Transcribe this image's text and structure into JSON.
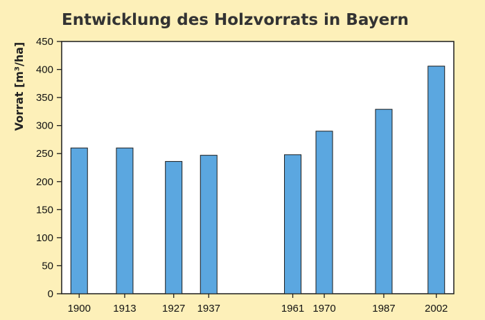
{
  "chart_data": {
    "type": "bar",
    "title": "Entwicklung des Holzvorrats in Bayern",
    "xlabel": "",
    "ylabel": "Vorrat [m³/ha]",
    "categories": [
      "1900",
      "1913",
      "1927",
      "1937",
      "1961",
      "1970",
      "1987",
      "2002"
    ],
    "x": [
      1900,
      1913,
      1927,
      1937,
      1961,
      1970,
      1987,
      2002
    ],
    "values": [
      260,
      260,
      236,
      247,
      248,
      290,
      329,
      406
    ],
    "ylim": [
      0,
      450
    ],
    "yticks": [
      "0",
      "50",
      "100",
      "150",
      "200",
      "250",
      "300",
      "350",
      "400",
      "450"
    ],
    "grid": false,
    "legend": "none",
    "colors": {
      "background": "#fdf0b9",
      "plot_area": "#ffffff",
      "bar_fill": "#5ba7e0",
      "bar_stroke": "#1a1a1a"
    }
  }
}
